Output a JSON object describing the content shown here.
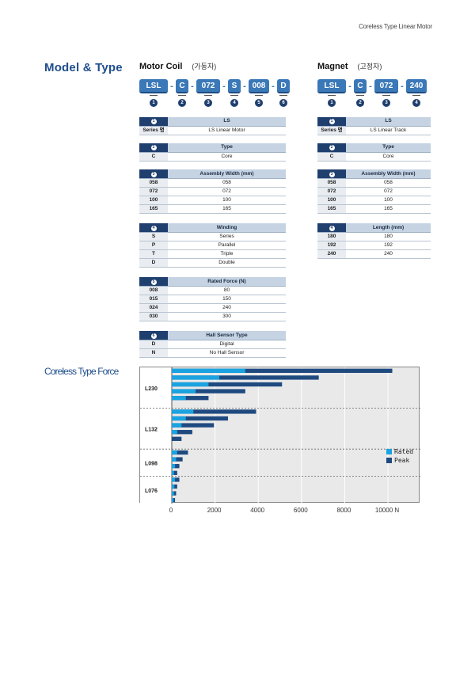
{
  "header": {
    "text": "Coreless  Type Linear Motor"
  },
  "model_title": "Model & Type",
  "force_title": "Coreless Type Force",
  "motor": {
    "title": "Motor Coil",
    "subtitle": "(가동자)",
    "code": [
      "LSL",
      "C",
      "072",
      "S",
      "008",
      "D"
    ],
    "nums": [
      "1",
      "2",
      "3",
      "4",
      "5",
      "6"
    ],
    "tables": [
      {
        "num": "1",
        "header": "LS",
        "rows": [
          [
            "Series 명",
            "LS Linear Motor"
          ]
        ]
      },
      {
        "num": "2",
        "header": "Type",
        "rows": [
          [
            "C",
            "Core"
          ]
        ]
      },
      {
        "num": "3",
        "header": "Assembly Width (mm)",
        "rows": [
          [
            "058",
            "058"
          ],
          [
            "072",
            "072"
          ],
          [
            "100",
            "100"
          ],
          [
            "165",
            "165"
          ]
        ]
      },
      {
        "num": "4",
        "header": "Winding",
        "rows": [
          [
            "S",
            "Series"
          ],
          [
            "P",
            "Parallel"
          ],
          [
            "T",
            "Triple"
          ],
          [
            "D",
            "Double"
          ]
        ]
      },
      {
        "num": "5",
        "header": "Rated Force (N)",
        "rows": [
          [
            "008",
            "80"
          ],
          [
            "015",
            "150"
          ],
          [
            "024",
            "240"
          ],
          [
            "030",
            "300"
          ]
        ]
      },
      {
        "num": "6",
        "header": "Hall Sensor Type",
        "rows": [
          [
            "D",
            "Digital"
          ],
          [
            "N",
            "No Hall Sensor"
          ]
        ]
      }
    ]
  },
  "magnet": {
    "title": "Magnet",
    "subtitle": "(고정자)",
    "code": [
      "LSL",
      "C",
      "072",
      "240"
    ],
    "nums": [
      "1",
      "2",
      "3",
      "4"
    ],
    "tables": [
      {
        "num": "1",
        "header": "LS",
        "rows": [
          [
            "Series 명",
            "LS Linear Track"
          ]
        ]
      },
      {
        "num": "2",
        "header": "Type",
        "rows": [
          [
            "C",
            "Core"
          ]
        ]
      },
      {
        "num": "3",
        "header": "Assembly Width (mm)",
        "rows": [
          [
            "058",
            "058"
          ],
          [
            "072",
            "072"
          ],
          [
            "100",
            "100"
          ],
          [
            "165",
            "165"
          ]
        ]
      },
      {
        "num": "4",
        "header": "Length (mm)",
        "rows": [
          [
            "180",
            "180"
          ],
          [
            "192",
            "192"
          ],
          [
            "240",
            "240"
          ]
        ]
      }
    ]
  },
  "chart_data": {
    "type": "bar",
    "orientation": "horizontal",
    "groups": [
      "L230",
      "L132",
      "L098",
      "L076"
    ],
    "group_sizes": [
      6,
      6,
      4,
      4
    ],
    "series": [
      {
        "name": "Rated",
        "color": "#1aa3e0",
        "values": [
          3400,
          2200,
          1700,
          1100,
          650,
          0,
          1000,
          650,
          450,
          250,
          0,
          0,
          250,
          200,
          150,
          100,
          150,
          120,
          100,
          80
        ]
      },
      {
        "name": "Peak",
        "color": "#1f4a80",
        "values": [
          10200,
          6800,
          5100,
          3400,
          1700,
          0,
          3900,
          2600,
          1950,
          950,
          450,
          0,
          750,
          500,
          350,
          250,
          350,
          250,
          200,
          150
        ]
      }
    ],
    "xlim": [
      0,
      11500
    ],
    "xticks": [
      0,
      2000,
      4000,
      6000,
      8000,
      10000
    ],
    "xlabel": "N",
    "grid": true,
    "legend": "right"
  }
}
